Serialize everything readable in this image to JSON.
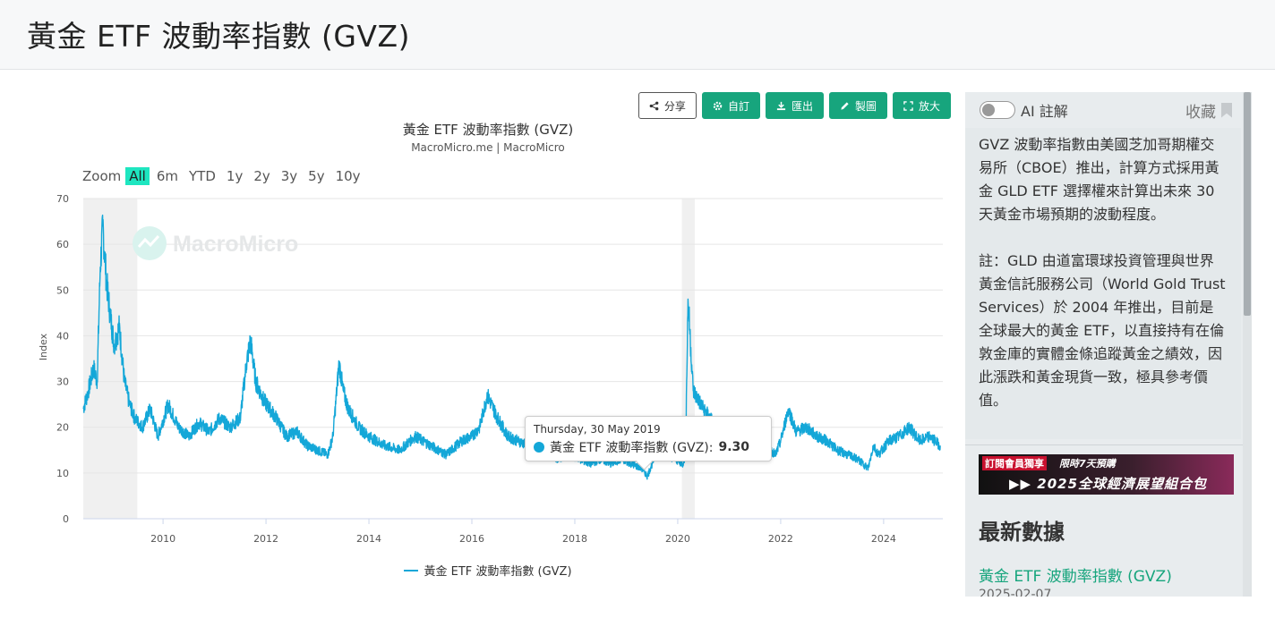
{
  "page": {
    "title": "黃金 ETF 波動率指數 (GVZ)"
  },
  "toolbar": {
    "share": "分享",
    "customize": "自訂",
    "export": "匯出",
    "draw": "製圖",
    "fullscreen": "放大"
  },
  "zoom": {
    "label": "Zoom",
    "options": [
      "All",
      "6m",
      "YTD",
      "1y",
      "2y",
      "3y",
      "5y",
      "10y"
    ],
    "selected": "All"
  },
  "watermark": "MacroMicro",
  "tooltip": {
    "date": "Thursday, 30 May 2019",
    "series": "黃金 ETF 波動率指數 (GVZ):",
    "value": "9.30"
  },
  "chart_data": {
    "type": "line",
    "title": "黃金 ETF 波動率指數 (GVZ)",
    "subtitle": "MacroMicro.me | MacroMicro",
    "ylabel": "Index",
    "xlabel": "",
    "ylim": [
      0,
      70
    ],
    "xlim": [
      2008.45,
      2025.15
    ],
    "yticks": [
      0,
      10,
      20,
      30,
      40,
      50,
      60,
      70
    ],
    "xticks": [
      2010,
      2012,
      2014,
      2016,
      2018,
      2020,
      2022,
      2024
    ],
    "grid": true,
    "legend_position": "bottom",
    "recession_bands": [
      [
        2008.45,
        2009.5
      ],
      [
        2020.08,
        2020.33
      ]
    ],
    "series": [
      {
        "name": "黃金 ETF 波動率指數 (GVZ)",
        "color": "#14a7d8",
        "x": [
          2008.45,
          2008.55,
          2008.65,
          2008.72,
          2008.78,
          2008.83,
          2008.9,
          2008.97,
          2009.05,
          2009.15,
          2009.25,
          2009.35,
          2009.45,
          2009.6,
          2009.75,
          2009.9,
          2010.1,
          2010.3,
          2010.5,
          2010.7,
          2010.9,
          2011.1,
          2011.3,
          2011.5,
          2011.62,
          2011.7,
          2011.8,
          2011.95,
          2012.2,
          2012.4,
          2012.6,
          2012.8,
          2013.0,
          2013.2,
          2013.3,
          2013.42,
          2013.5,
          2013.6,
          2013.8,
          2014.0,
          2014.3,
          2014.6,
          2014.9,
          2015.2,
          2015.5,
          2015.8,
          2016.0,
          2016.15,
          2016.3,
          2016.5,
          2016.7,
          2016.9,
          2017.1,
          2017.3,
          2017.5,
          2017.7,
          2017.9,
          2018.1,
          2018.3,
          2018.5,
          2018.7,
          2018.9,
          2019.1,
          2019.3,
          2019.41,
          2019.6,
          2019.8,
          2019.95,
          2020.1,
          2020.15,
          2020.2,
          2020.3,
          2020.5,
          2020.7,
          2020.9,
          2021.1,
          2021.3,
          2021.5,
          2021.7,
          2021.9,
          2022.0,
          2022.15,
          2022.3,
          2022.5,
          2022.7,
          2022.9,
          2023.1,
          2023.3,
          2023.5,
          2023.7,
          2023.8,
          2023.9,
          2024.1,
          2024.3,
          2024.5,
          2024.7,
          2024.9,
          2025.1
        ],
        "values": [
          24,
          28,
          33,
          30,
          55,
          64,
          52,
          45,
          38,
          42,
          30,
          25,
          22,
          20,
          24,
          18,
          25,
          20,
          18,
          21,
          19,
          22,
          20,
          22,
          34,
          39,
          30,
          26,
          22,
          18,
          19,
          16,
          15,
          14,
          18,
          34,
          28,
          24,
          20,
          18,
          16,
          15,
          18,
          16,
          14,
          17,
          18,
          20,
          27,
          22,
          18,
          17,
          16,
          15,
          14,
          13,
          14,
          13,
          12,
          13,
          12,
          13,
          12,
          11,
          9.3,
          15,
          14,
          13,
          12,
          14,
          48,
          28,
          24,
          21,
          18,
          17,
          16,
          15,
          16,
          14,
          17,
          24,
          19,
          20,
          18,
          17,
          15,
          14,
          13,
          11,
          16,
          14,
          17,
          18,
          20,
          17,
          18,
          16
        ]
      }
    ]
  },
  "side": {
    "ai_toggle_label": "AI 註解",
    "favorite_label": "收藏",
    "paragraph1": "GVZ 波動率指數由美國芝加哥期權交易所（CBOE）推出，計算方式採用黃金 GLD ETF 選擇權來計算出未來 30 天黃金市場預期的波動程度。",
    "paragraph2": "註：GLD 由道富環球投資管理與世界黃金信託服務公司（World Gold Trust Services）於 2004 年推出，目前是全球最大的黃金 ETF，以直接持有在倫敦金庫的實體金條追蹤黃金之績效，因此漲跌和黃金現貨一致，極具參考價值。",
    "promo_tag": "訂閱會員獨享",
    "promo_limit": "限時7天預購",
    "promo_text": "▶▶ 2025全球經濟展望組合包",
    "latest_title": "最新數據",
    "latest_name": "黃金 ETF 波動率指數 (GVZ)",
    "latest_date": "2025-02-07"
  }
}
